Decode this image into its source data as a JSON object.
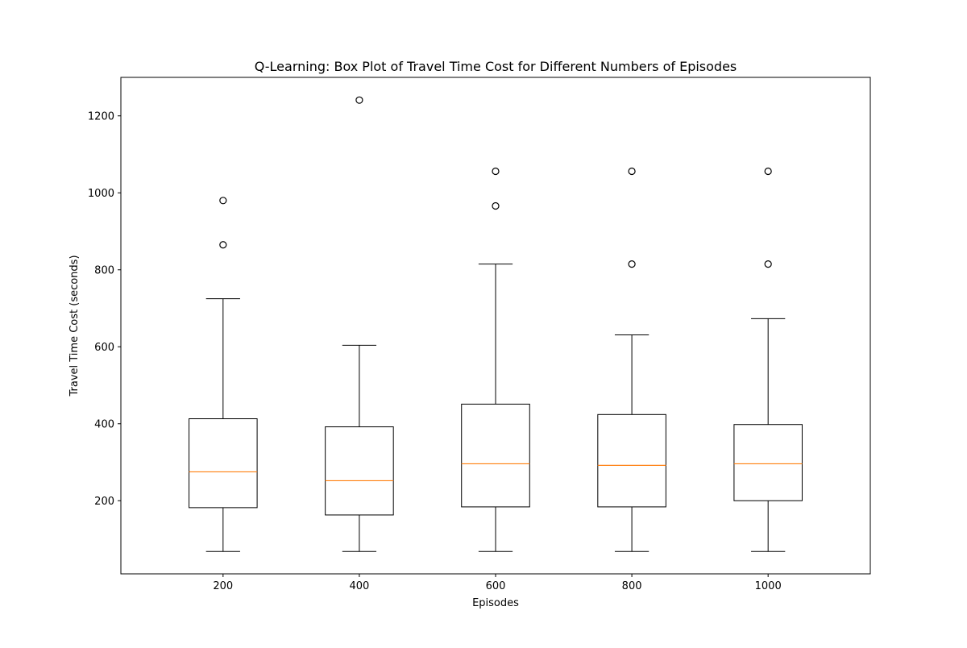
{
  "chart_data": {
    "type": "box",
    "title": "Q-Learning: Box Plot of Travel Time Cost for Different Numbers of Episodes",
    "xlabel": "Episodes",
    "ylabel": "Travel Time Cost (seconds)",
    "ylim": [
      10,
      1300
    ],
    "yticks": [
      200,
      400,
      600,
      800,
      1000,
      1200
    ],
    "grid": false,
    "categories": [
      "200",
      "400",
      "600",
      "800",
      "1000"
    ],
    "boxes": [
      {
        "label": "200",
        "whisker_low": 68,
        "q1": 182,
        "median": 275,
        "q3": 413,
        "whisker_high": 725,
        "outliers": [
          865,
          980
        ]
      },
      {
        "label": "400",
        "whisker_low": 68,
        "q1": 163,
        "median": 252,
        "q3": 392,
        "whisker_high": 604,
        "outliers": [
          1241
        ]
      },
      {
        "label": "600",
        "whisker_low": 68,
        "q1": 184,
        "median": 296,
        "q3": 451,
        "whisker_high": 815,
        "outliers": [
          966,
          1056
        ]
      },
      {
        "label": "800",
        "whisker_low": 68,
        "q1": 184,
        "median": 292,
        "q3": 424,
        "whisker_high": 631,
        "outliers": [
          815,
          1056
        ]
      },
      {
        "label": "1000",
        "whisker_low": 68,
        "q1": 200,
        "median": 296,
        "q3": 398,
        "whisker_high": 673,
        "outliers": [
          815,
          1056
        ]
      }
    ],
    "colors": {
      "box": "#000000",
      "median": "#ff7f0e",
      "outlier": "#000000"
    }
  }
}
